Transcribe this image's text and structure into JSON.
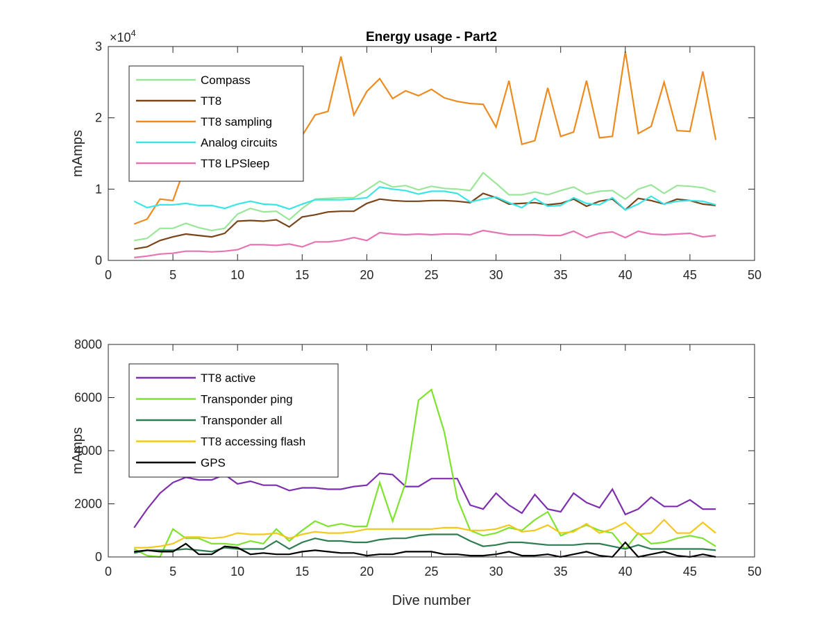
{
  "chart_data": [
    {
      "type": "line",
      "title": "Energy usage - Part2",
      "xlabel": "",
      "ylabel": "mAmps",
      "y_exponent_label": "×10",
      "y_exponent_power": "4",
      "xlim": [
        0,
        50
      ],
      "ylim": [
        0,
        30000
      ],
      "xticks": [
        0,
        5,
        10,
        15,
        20,
        25,
        30,
        35,
        40,
        45,
        50
      ],
      "yticks": [
        0,
        10000,
        20000,
        30000
      ],
      "ytick_labels": [
        "0",
        "1",
        "2",
        "3"
      ],
      "legend_position": "top-left",
      "x": [
        2,
        3,
        4,
        5,
        6,
        7,
        8,
        9,
        10,
        11,
        12,
        13,
        14,
        15,
        16,
        17,
        18,
        19,
        20,
        21,
        22,
        23,
        24,
        25,
        26,
        27,
        28,
        29,
        30,
        31,
        32,
        33,
        34,
        35,
        36,
        37,
        38,
        39,
        40,
        41,
        42,
        43,
        44,
        45,
        46,
        47
      ],
      "series": [
        {
          "name": "Compass",
          "color": "#99e699",
          "values": [
            2800,
            3100,
            4500,
            4500,
            5200,
            4600,
            4200,
            4500,
            6500,
            7300,
            6800,
            6900,
            5700,
            7300,
            8600,
            8700,
            8800,
            8800,
            9900,
            11100,
            10300,
            10500,
            9900,
            10400,
            10100,
            10000,
            9800,
            12300,
            10800,
            9200,
            9200,
            9600,
            9200,
            9800,
            10300,
            9300,
            9700,
            9800,
            8600,
            10000,
            10600,
            9400,
            10500,
            10400,
            10200,
            9600
          ]
        },
        {
          "name": "TT8",
          "color": "#7a4419",
          "values": [
            1600,
            1900,
            2800,
            3300,
            3700,
            3500,
            3300,
            3800,
            5500,
            5600,
            5500,
            5700,
            4700,
            6100,
            6400,
            6800,
            6900,
            6900,
            8000,
            8600,
            8400,
            8300,
            8300,
            8400,
            8400,
            8300,
            8100,
            9400,
            8800,
            7900,
            8000,
            8100,
            7800,
            8000,
            8600,
            7600,
            8300,
            8600,
            7100,
            8700,
            8400,
            7900,
            8600,
            8400,
            7900,
            7700
          ]
        },
        {
          "name": "TT8 sampling",
          "color": "#ed8b1e",
          "values": [
            5100,
            5800,
            8600,
            8400,
            13400,
            16000,
            16900,
            17500,
            17800,
            17900,
            17500,
            17600,
            16000,
            17500,
            20400,
            20900,
            28600,
            20400,
            23700,
            25500,
            22700,
            23800,
            23100,
            24000,
            22800,
            22300,
            22000,
            21900,
            18700,
            25200,
            16300,
            16800,
            24200,
            17400,
            18000,
            25200,
            17200,
            17400,
            29300,
            17800,
            18800,
            25000,
            18200,
            18100,
            26500,
            16900
          ]
        },
        {
          "name": "Analog circuits",
          "color": "#38e6e6",
          "values": [
            8300,
            7400,
            7800,
            7800,
            8000,
            7700,
            7700,
            7300,
            7900,
            8300,
            7900,
            7800,
            7200,
            7900,
            8500,
            8500,
            8500,
            8600,
            8800,
            10300,
            10000,
            9800,
            9300,
            9700,
            9700,
            9400,
            8200,
            8600,
            8900,
            8100,
            7400,
            8700,
            7600,
            7700,
            8800,
            8000,
            7800,
            8800,
            7100,
            7900,
            9000,
            7900,
            8300,
            8400,
            8300,
            7800
          ]
        },
        {
          "name": "TT8 LPSleep",
          "color": "#e674b4",
          "values": [
            400,
            600,
            900,
            1000,
            1300,
            1300,
            1200,
            1300,
            1500,
            2200,
            2200,
            2100,
            2300,
            1900,
            2600,
            2600,
            2800,
            3200,
            2800,
            3900,
            3700,
            3600,
            3700,
            3600,
            3700,
            3700,
            3600,
            4200,
            3900,
            3600,
            3600,
            3600,
            3500,
            3500,
            4100,
            3200,
            3800,
            4000,
            3200,
            4100,
            3700,
            3600,
            3700,
            3800,
            3300,
            3500
          ]
        }
      ]
    },
    {
      "type": "line",
      "title": "",
      "xlabel": "Dive number",
      "ylabel": "mAmps",
      "xlim": [
        0,
        50
      ],
      "ylim": [
        0,
        8000
      ],
      "xticks": [
        0,
        5,
        10,
        15,
        20,
        25,
        30,
        35,
        40,
        45,
        50
      ],
      "yticks": [
        0,
        2000,
        4000,
        6000,
        8000
      ],
      "ytick_labels": [
        "0",
        "2000",
        "4000",
        "6000",
        "8000"
      ],
      "legend_position": "top-left",
      "x": [
        2,
        3,
        4,
        5,
        6,
        7,
        8,
        9,
        10,
        11,
        12,
        13,
        14,
        15,
        16,
        17,
        18,
        19,
        20,
        21,
        22,
        23,
        24,
        25,
        26,
        27,
        28,
        29,
        30,
        31,
        32,
        33,
        34,
        35,
        36,
        37,
        38,
        39,
        40,
        41,
        42,
        43,
        44,
        45,
        46,
        47
      ],
      "series": [
        {
          "name": "TT8 active",
          "color": "#7e2fad",
          "values": [
            1100,
            1800,
            2400,
            2800,
            3000,
            2900,
            2900,
            3100,
            2750,
            2850,
            2700,
            2700,
            2500,
            2600,
            2600,
            2550,
            2550,
            2650,
            2700,
            3150,
            3100,
            2650,
            2650,
            2950,
            2950,
            2950,
            1950,
            1800,
            2400,
            1950,
            1650,
            2350,
            1800,
            1700,
            2400,
            2050,
            1850,
            2550,
            1600,
            1800,
            2250,
            1900,
            1900,
            2150,
            1800,
            1800
          ]
        },
        {
          "name": "Transponder ping",
          "color": "#7ee32e",
          "values": [
            300,
            50,
            0,
            1050,
            700,
            700,
            500,
            500,
            450,
            600,
            500,
            1050,
            600,
            1000,
            1350,
            1150,
            1250,
            1150,
            1150,
            2800,
            1350,
            2800,
            5900,
            6300,
            4700,
            2200,
            1000,
            800,
            900,
            1100,
            1000,
            1400,
            1700,
            800,
            1000,
            1200,
            1000,
            900,
            300,
            900,
            500,
            550,
            700,
            800,
            700,
            400
          ]
        },
        {
          "name": "Transponder all",
          "color": "#2e7d50",
          "values": [
            150,
            250,
            250,
            250,
            300,
            250,
            200,
            350,
            300,
            300,
            300,
            600,
            300,
            550,
            700,
            600,
            600,
            550,
            550,
            650,
            700,
            700,
            800,
            850,
            850,
            850,
            600,
            400,
            450,
            550,
            550,
            500,
            450,
            450,
            450,
            500,
            500,
            400,
            300,
            450,
            300,
            300,
            300,
            300,
            300,
            250
          ]
        },
        {
          "name": "TT8 accessing flash",
          "color": "#f2c81d",
          "values": [
            350,
            350,
            400,
            500,
            750,
            750,
            700,
            750,
            900,
            850,
            850,
            900,
            700,
            850,
            950,
            900,
            900,
            950,
            1050,
            1050,
            1050,
            1050,
            1050,
            1050,
            1100,
            1100,
            1000,
            1000,
            1050,
            1200,
            950,
            1000,
            1200,
            900,
            950,
            1250,
            900,
            1050,
            1300,
            850,
            900,
            1400,
            900,
            900,
            1300,
            900
          ]
        },
        {
          "name": "GPS",
          "color": "#000000",
          "values": [
            200,
            250,
            200,
            200,
            500,
            100,
            100,
            400,
            350,
            100,
            150,
            100,
            100,
            200,
            250,
            200,
            150,
            150,
            50,
            100,
            100,
            200,
            200,
            200,
            100,
            100,
            50,
            50,
            100,
            200,
            50,
            50,
            100,
            0,
            100,
            200,
            50,
            0,
            550,
            0,
            100,
            200,
            50,
            0,
            100,
            0
          ]
        }
      ]
    }
  ]
}
